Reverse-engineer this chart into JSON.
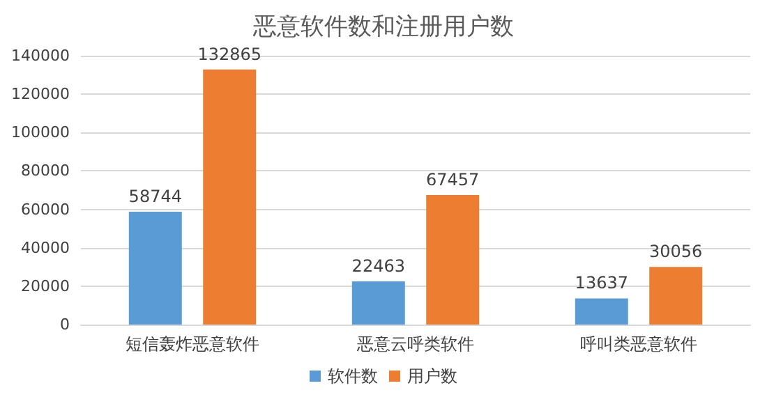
{
  "chart_data": {
    "type": "bar",
    "title": "恶意软件数和注册用户数",
    "categories": [
      "短信轰炸恶意软件",
      "恶意云呼类软件",
      "呼叫类恶意软件"
    ],
    "series": [
      {
        "name": "软件数",
        "color": "#5b9bd5",
        "values": [
          58744,
          22463,
          13637
        ]
      },
      {
        "name": "用户数",
        "color": "#ed7d31",
        "values": [
          132865,
          67457,
          30056
        ]
      }
    ],
    "ylim": [
      0,
      140000
    ],
    "yticks": [
      0,
      20000,
      40000,
      60000,
      80000,
      100000,
      120000,
      140000
    ],
    "grid": "y",
    "legend": "bottom",
    "data_labels": true
  }
}
